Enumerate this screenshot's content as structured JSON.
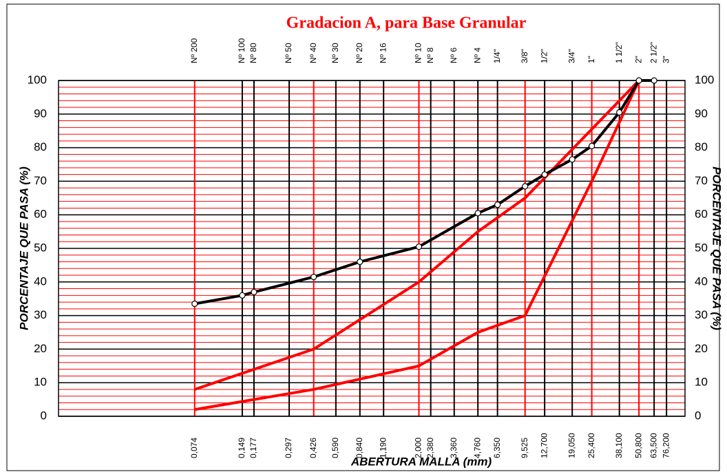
{
  "chart_data": {
    "type": "line",
    "title": "Gradacion A, para Base Granular",
    "x_label": "ABERTURA MALLA (mm)",
    "y_label": "PORCENTAJE QUE PASA (%)",
    "x_scale": "log",
    "xlim": [
      0.01,
      100
    ],
    "ylim": [
      0,
      100
    ],
    "yticks": [
      0,
      10,
      20,
      30,
      40,
      50,
      60,
      70,
      80,
      90,
      100
    ],
    "yminor_step": 2,
    "ygrid_color": "#000000",
    "yminor_color": "#ff0000",
    "xticks": [
      {
        "value": 0.074,
        "label": "0,074"
      },
      {
        "value": 0.149,
        "label": "0,149"
      },
      {
        "value": 0.177,
        "label": "0,177"
      },
      {
        "value": 0.297,
        "label": "0,297"
      },
      {
        "value": 0.426,
        "label": "0,426"
      },
      {
        "value": 0.59,
        "label": "0,590"
      },
      {
        "value": 0.84,
        "label": "0,840"
      },
      {
        "value": 1.19,
        "label": "1,190"
      },
      {
        "value": 2.0,
        "label": "2,000"
      },
      {
        "value": 2.38,
        "label": "2,380"
      },
      {
        "value": 3.36,
        "label": "3,360"
      },
      {
        "value": 4.76,
        "label": "4,760"
      },
      {
        "value": 6.35,
        "label": "6,350"
      },
      {
        "value": 9.525,
        "label": "9,525"
      },
      {
        "value": 12.7,
        "label": "12,700"
      },
      {
        "value": 19.05,
        "label": "19,050"
      },
      {
        "value": 25.4,
        "label": "25,400"
      },
      {
        "value": 38.1,
        "label": "38,100"
      },
      {
        "value": 50.8,
        "label": "50,800"
      },
      {
        "value": 63.5,
        "label": "63,500"
      },
      {
        "value": 76.2,
        "label": "76,200"
      }
    ],
    "sieve_labels": [
      "Nº 200",
      "Nº 100",
      "Nº 80",
      "Nº 50",
      "Nº 40",
      "Nº 30",
      "Nº 20",
      "Nº 16",
      "Nº 10",
      "Nº 8",
      "Nº 6",
      "Nº 4",
      "1/4\"",
      "3/8\"",
      "1/2\"",
      "3/4\"",
      "1\"",
      "1 1/2\"",
      "2\"",
      "2 1/2\"",
      "3\""
    ],
    "xgrid_colors": [
      "#ff0000",
      "#000000",
      "#000000",
      "#000000",
      "#ff0000",
      "#000000",
      "#000000",
      "#000000",
      "#ff0000",
      "#000000",
      "#000000",
      "#000000",
      "#000000",
      "#ff0000",
      "#000000",
      "#000000",
      "#ff0000",
      "#000000",
      "#ff0000",
      "#000000",
      "#000000"
    ],
    "series": [
      {
        "color": "#000000",
        "markers": true,
        "x": [
          0.074,
          0.149,
          0.177,
          0.426,
          0.84,
          2.0,
          4.76,
          6.35,
          9.525,
          12.7,
          19.05,
          25.4,
          38.1,
          50.8,
          63.5
        ],
        "values": [
          33.5,
          36,
          37,
          41.5,
          46,
          50.5,
          60.5,
          63,
          68.5,
          72,
          76.5,
          80.5,
          90.5,
          100,
          100
        ]
      },
      {
        "color": "#ff0000",
        "markers": false,
        "x": [
          0.074,
          0.426,
          2.0,
          4.76,
          9.525,
          50.8
        ],
        "values": [
          8,
          20,
          40,
          55,
          65,
          100
        ]
      },
      {
        "color": "#ff0000",
        "markers": false,
        "x": [
          0.074,
          0.426,
          2.0,
          4.76,
          9.525,
          25.4,
          50.8
        ],
        "values": [
          2,
          8,
          15,
          25,
          30,
          70,
          100
        ]
      }
    ]
  }
}
